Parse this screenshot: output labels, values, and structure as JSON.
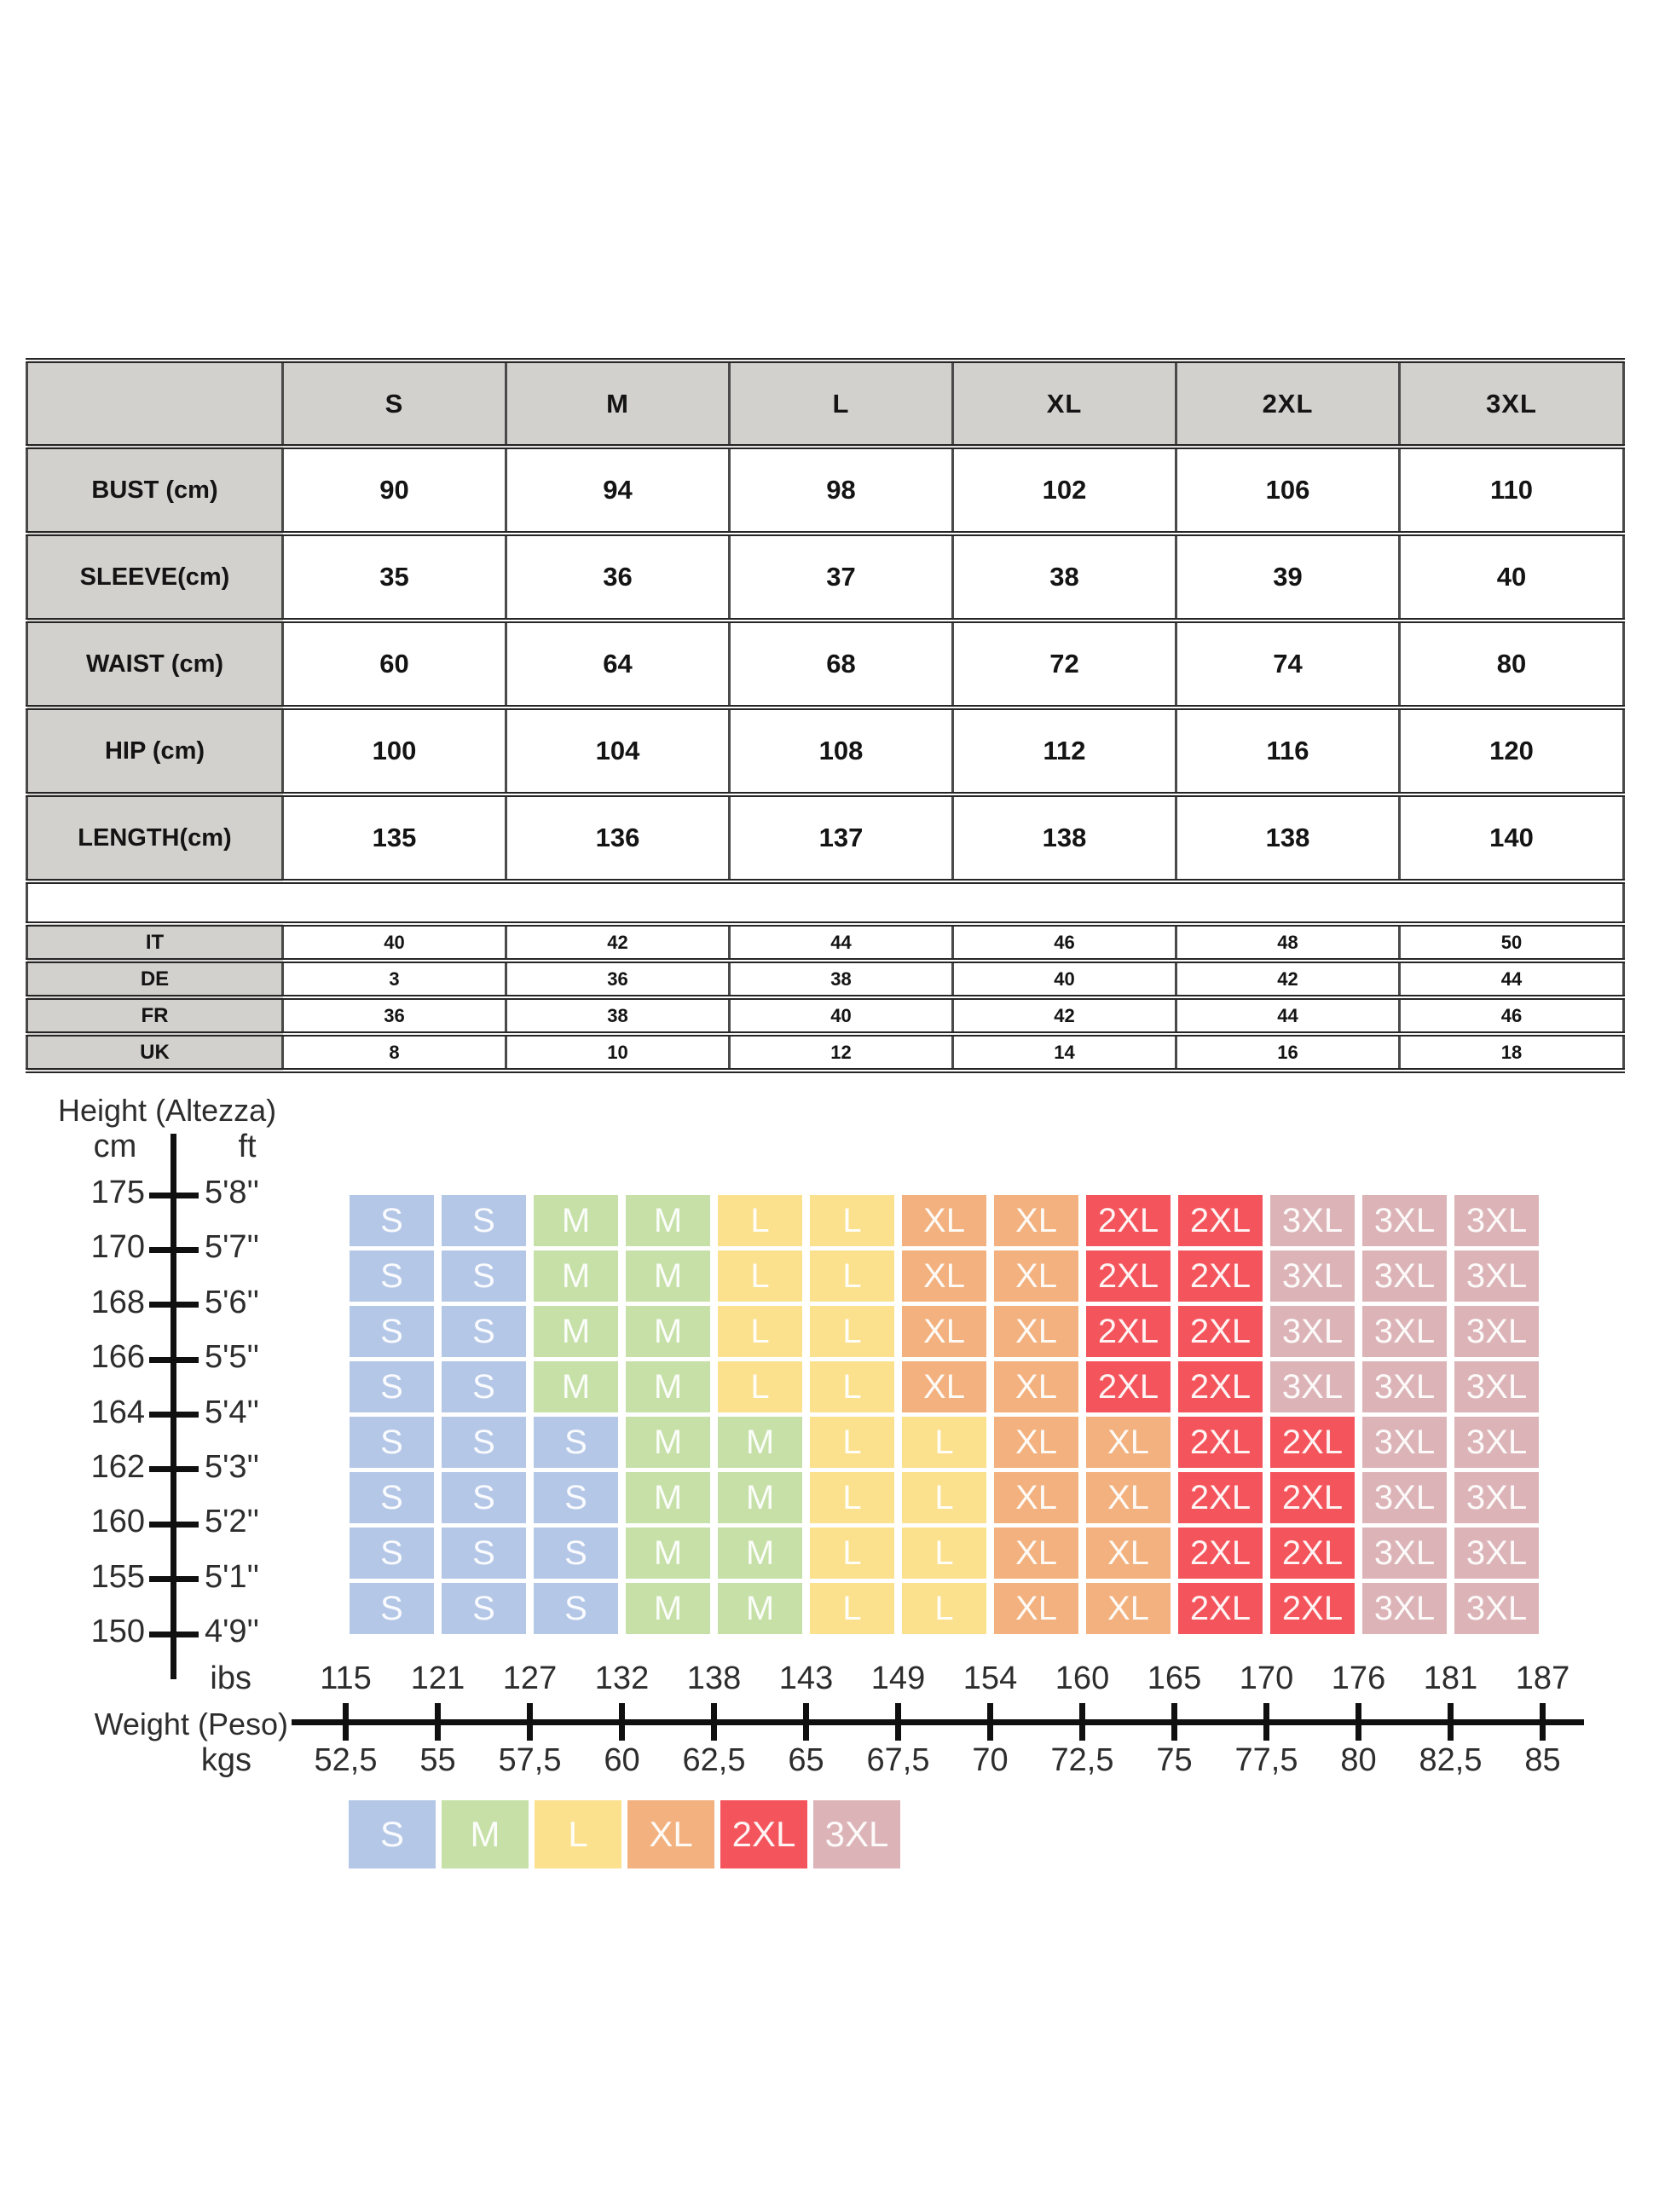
{
  "measurement_table": {
    "corner_label": "",
    "size_headers": [
      "S",
      "M",
      "L",
      "XL",
      "2XL",
      "3XL"
    ],
    "rows": [
      {
        "label": "BUST (cm)",
        "values": [
          "90",
          "94",
          "98",
          "102",
          "106",
          "110"
        ]
      },
      {
        "label": "SLEEVE(cm)",
        "values": [
          "35",
          "36",
          "37",
          "38",
          "39",
          "40"
        ]
      },
      {
        "label": "WAIST (cm)",
        "values": [
          "60",
          "64",
          "68",
          "72",
          "74",
          "80"
        ]
      },
      {
        "label": "HIP (cm)",
        "values": [
          "100",
          "104",
          "108",
          "112",
          "116",
          "120"
        ]
      },
      {
        "label": "LENGTH(cm)",
        "values": [
          "135",
          "136",
          "137",
          "138",
          "138",
          "140"
        ]
      }
    ]
  },
  "conversion_table": {
    "rows": [
      {
        "label": "IT",
        "values": [
          "40",
          "42",
          "44",
          "46",
          "48",
          "50"
        ]
      },
      {
        "label": "DE",
        "values": [
          "3",
          "36",
          "38",
          "40",
          "42",
          "44"
        ]
      },
      {
        "label": "FR",
        "values": [
          "36",
          "38",
          "40",
          "42",
          "44",
          "46"
        ]
      },
      {
        "label": "UK",
        "values": [
          "8",
          "10",
          "12",
          "14",
          "16",
          "18"
        ]
      }
    ]
  },
  "chart": {
    "height_axis": {
      "title": "Height (Altezza)",
      "left_unit": "cm",
      "right_unit": "ft",
      "ticks": [
        {
          "cm": "175",
          "ft": "5'8''"
        },
        {
          "cm": "170",
          "ft": "5'7''"
        },
        {
          "cm": "168",
          "ft": "5'6''"
        },
        {
          "cm": "166",
          "ft": "5'5''"
        },
        {
          "cm": "164",
          "ft": "5'4''"
        },
        {
          "cm": "162",
          "ft": "5'3''"
        },
        {
          "cm": "160",
          "ft": "5'2''"
        },
        {
          "cm": "155",
          "ft": "5'1''"
        },
        {
          "cm": "150",
          "ft": "4'9''"
        }
      ]
    },
    "weight_axis": {
      "title": "Weight (Peso)",
      "top_unit": "ibs",
      "bottom_unit": "kgs",
      "lbs": [
        "115",
        "121",
        "127",
        "132",
        "138",
        "143",
        "149",
        "154",
        "160",
        "165",
        "170",
        "176",
        "181",
        "187"
      ],
      "kgs": [
        "52,5",
        "55",
        "57,5",
        "60",
        "62,5",
        "65",
        "67,5",
        "70",
        "72,5",
        "75",
        "77,5",
        "80",
        "82,5",
        "85"
      ]
    },
    "grid_rows": [
      [
        "S",
        "S",
        "M",
        "M",
        "L",
        "L",
        "XL",
        "XL",
        "2XL",
        "2XL",
        "3XL",
        "3XL",
        "3XL"
      ],
      [
        "S",
        "S",
        "M",
        "M",
        "L",
        "L",
        "XL",
        "XL",
        "2XL",
        "2XL",
        "3XL",
        "3XL",
        "3XL"
      ],
      [
        "S",
        "S",
        "M",
        "M",
        "L",
        "L",
        "XL",
        "XL",
        "2XL",
        "2XL",
        "3XL",
        "3XL",
        "3XL"
      ],
      [
        "S",
        "S",
        "M",
        "M",
        "L",
        "L",
        "XL",
        "XL",
        "2XL",
        "2XL",
        "3XL",
        "3XL",
        "3XL"
      ],
      [
        "S",
        "S",
        "S",
        "M",
        "M",
        "L",
        "L",
        "XL",
        "XL",
        "2XL",
        "2XL",
        "3XL",
        "3XL"
      ],
      [
        "S",
        "S",
        "S",
        "M",
        "M",
        "L",
        "L",
        "XL",
        "XL",
        "2XL",
        "2XL",
        "3XL",
        "3XL"
      ],
      [
        "S",
        "S",
        "S",
        "M",
        "M",
        "L",
        "L",
        "XL",
        "XL",
        "2XL",
        "2XL",
        "3XL",
        "3XL"
      ],
      [
        "S",
        "S",
        "S",
        "M",
        "M",
        "L",
        "L",
        "XL",
        "XL",
        "2XL",
        "2XL",
        "3XL",
        "3XL"
      ]
    ],
    "legend": [
      "S",
      "M",
      "L",
      "XL",
      "2XL",
      "3XL"
    ],
    "size_colors": {
      "S": "#b4c7e7",
      "M": "#c6e0a8",
      "L": "#fbe18e",
      "XL": "#f2b17e",
      "2XL": "#f4545b",
      "3XL": "#dcb4b8"
    }
  },
  "chart_data": {
    "type": "heatmap",
    "title": "Garment size by height and weight",
    "xlabel": "Weight (Peso)",
    "ylabel": "Height (Altezza)",
    "x_ticks_lbs": [
      115,
      121,
      127,
      132,
      138,
      143,
      149,
      154,
      160,
      165,
      170,
      176,
      181,
      187
    ],
    "x_ticks_kgs": [
      52.5,
      55,
      57.5,
      60,
      62.5,
      65,
      67.5,
      70,
      72.5,
      75,
      77.5,
      80,
      82.5,
      85
    ],
    "y_ticks_cm": [
      175,
      170,
      168,
      166,
      164,
      162,
      160,
      155,
      150
    ],
    "y_ticks_ft": [
      "5'8''",
      "5'7''",
      "5'6''",
      "5'5''",
      "5'4''",
      "5'3''",
      "5'2''",
      "5'1''",
      "4'9''"
    ],
    "cells": [
      [
        "S",
        "S",
        "M",
        "M",
        "L",
        "L",
        "XL",
        "XL",
        "2XL",
        "2XL",
        "3XL",
        "3XL",
        "3XL"
      ],
      [
        "S",
        "S",
        "M",
        "M",
        "L",
        "L",
        "XL",
        "XL",
        "2XL",
        "2XL",
        "3XL",
        "3XL",
        "3XL"
      ],
      [
        "S",
        "S",
        "M",
        "M",
        "L",
        "L",
        "XL",
        "XL",
        "2XL",
        "2XL",
        "3XL",
        "3XL",
        "3XL"
      ],
      [
        "S",
        "S",
        "M",
        "M",
        "L",
        "L",
        "XL",
        "XL",
        "2XL",
        "2XL",
        "3XL",
        "3XL",
        "3XL"
      ],
      [
        "S",
        "S",
        "S",
        "M",
        "M",
        "L",
        "L",
        "XL",
        "XL",
        "2XL",
        "2XL",
        "3XL",
        "3XL"
      ],
      [
        "S",
        "S",
        "S",
        "M",
        "M",
        "L",
        "L",
        "XL",
        "XL",
        "2XL",
        "2XL",
        "3XL",
        "3XL"
      ],
      [
        "S",
        "S",
        "S",
        "M",
        "M",
        "L",
        "L",
        "XL",
        "XL",
        "2XL",
        "2XL",
        "3XL",
        "3XL"
      ],
      [
        "S",
        "S",
        "S",
        "M",
        "M",
        "L",
        "L",
        "XL",
        "XL",
        "2XL",
        "2XL",
        "3XL",
        "3XL"
      ]
    ],
    "legend_entries": [
      "S",
      "M",
      "L",
      "XL",
      "2XL",
      "3XL"
    ],
    "tables": [
      {
        "type": "table",
        "name": "measurements",
        "columns": [
          "",
          "S",
          "M",
          "L",
          "XL",
          "2XL",
          "3XL"
        ],
        "rows": [
          [
            "BUST (cm)",
            90,
            94,
            98,
            102,
            106,
            110
          ],
          [
            "SLEEVE(cm)",
            35,
            36,
            37,
            38,
            39,
            40
          ],
          [
            "WAIST (cm)",
            60,
            64,
            68,
            72,
            74,
            80
          ],
          [
            "HIP (cm)",
            100,
            104,
            108,
            112,
            116,
            120
          ],
          [
            "LENGTH(cm)",
            135,
            136,
            137,
            138,
            138,
            140
          ]
        ]
      },
      {
        "type": "table",
        "name": "international-conversion",
        "columns": [
          "",
          "S",
          "M",
          "L",
          "XL",
          "2XL",
          "3XL"
        ],
        "rows": [
          [
            "IT",
            40,
            42,
            44,
            46,
            48,
            50
          ],
          [
            "DE",
            3,
            36,
            38,
            40,
            42,
            44
          ],
          [
            "FR",
            36,
            38,
            40,
            42,
            44,
            46
          ],
          [
            "UK",
            8,
            10,
            12,
            14,
            16,
            18
          ]
        ]
      }
    ]
  }
}
